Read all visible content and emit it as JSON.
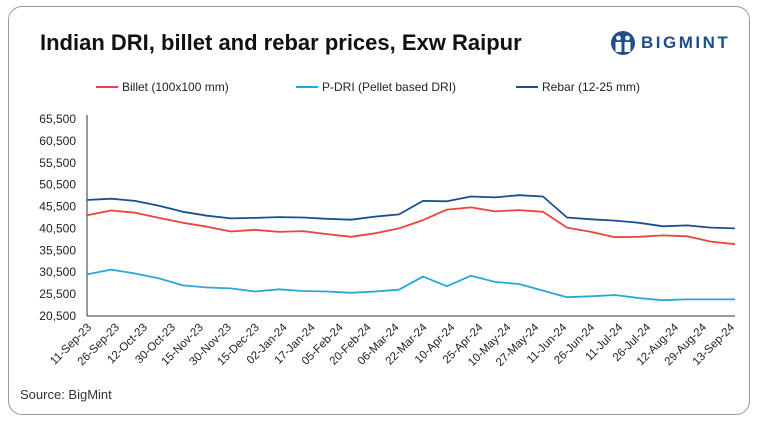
{
  "header": {
    "title": "Indian DRI, billet and rebar prices, Exw Raipur",
    "logo_text": "BIGMINT"
  },
  "footer": {
    "source": "Source: BigMint"
  },
  "chart_data": {
    "type": "line",
    "title": "Indian DRI, billet and rebar prices, Exw Raipur",
    "xlabel": "",
    "ylabel": "",
    "ylim": [
      20500,
      65500
    ],
    "yticks": [
      20500,
      25500,
      30500,
      35500,
      40500,
      45500,
      50500,
      55500,
      60500,
      65500
    ],
    "ytick_labels": [
      "20,500",
      "25,500",
      "30,500",
      "35,500",
      "40,500",
      "45,500",
      "50,500",
      "55,500",
      "60,500",
      "65,500"
    ],
    "xtick_labels": [
      "11-Sep-23",
      "26-Sep-23",
      "12-Oct-23",
      "30-Oct-23",
      "15-Nov-23",
      "30-Nov-23",
      "15-Dec-23",
      "02-Jan-24",
      "17-Jan-24",
      "05-Feb-24",
      "20-Feb-24",
      "06-Mar-24",
      "22-Mar-24",
      "10-Apr-24",
      "25-Apr-24",
      "10-May-24",
      "27-May-24",
      "11-Jun-24",
      "26-Jun-24",
      "11-Jul-24",
      "26-Jul-24",
      "12-Aug-24",
      "29-Aug-24",
      "13-Sep-24"
    ],
    "grid": false,
    "legend_position": "top",
    "series": [
      {
        "name": "Billet (100x100 mm)",
        "color": "#e8453c",
        "values": [
          43500,
          44600,
          44100,
          42900,
          41800,
          40900,
          39800,
          40200,
          39700,
          39900,
          39200,
          38600,
          39400,
          40500,
          42400,
          44800,
          45300,
          44400,
          44700,
          44300,
          40700,
          39700,
          38500,
          38600,
          38900,
          38700,
          37500,
          36900
        ]
      },
      {
        "name": "P-DRI (Pellet based DRI)",
        "color": "#29a8d8",
        "values": [
          30000,
          31100,
          30200,
          29100,
          27500,
          27000,
          26800,
          26100,
          26600,
          26200,
          26100,
          25800,
          26100,
          26500,
          29500,
          27300,
          29700,
          28300,
          27800,
          26300,
          24800,
          25000,
          25300,
          24600,
          24100,
          24300,
          24300,
          24300
        ]
      },
      {
        "name": "Rebar (12-25 mm)",
        "color": "#1a4f8e",
        "values": [
          47000,
          47300,
          46800,
          45700,
          44300,
          43400,
          42800,
          42900,
          43100,
          43000,
          42700,
          42500,
          43200,
          43700,
          46800,
          46700,
          47800,
          47600,
          48100,
          47800,
          43000,
          42600,
          42300,
          41800,
          41000,
          41200,
          40700,
          40500
        ]
      }
    ]
  }
}
